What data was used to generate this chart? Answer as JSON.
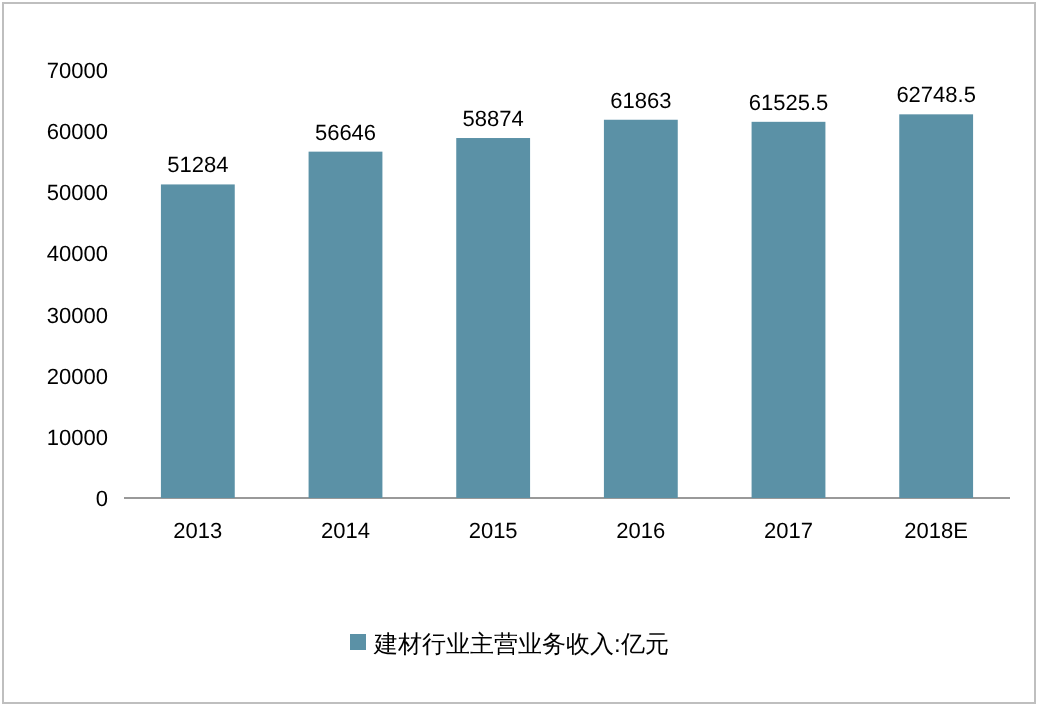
{
  "chart_data": {
    "type": "bar",
    "categories": [
      "2013",
      "2014",
      "2015",
      "2016",
      "2017",
      "2018E"
    ],
    "series": [
      {
        "name": "建材行业主营业务收入:亿元",
        "color": "#5b91a6",
        "values": [
          51284,
          56646,
          58874,
          61863,
          61525.5,
          62748.5
        ]
      }
    ],
    "ylim": [
      0,
      70000
    ],
    "yticks": [
      0,
      10000,
      20000,
      30000,
      40000,
      50000,
      60000,
      70000
    ],
    "data_labels": true,
    "legend": "bottom",
    "grid": false
  }
}
